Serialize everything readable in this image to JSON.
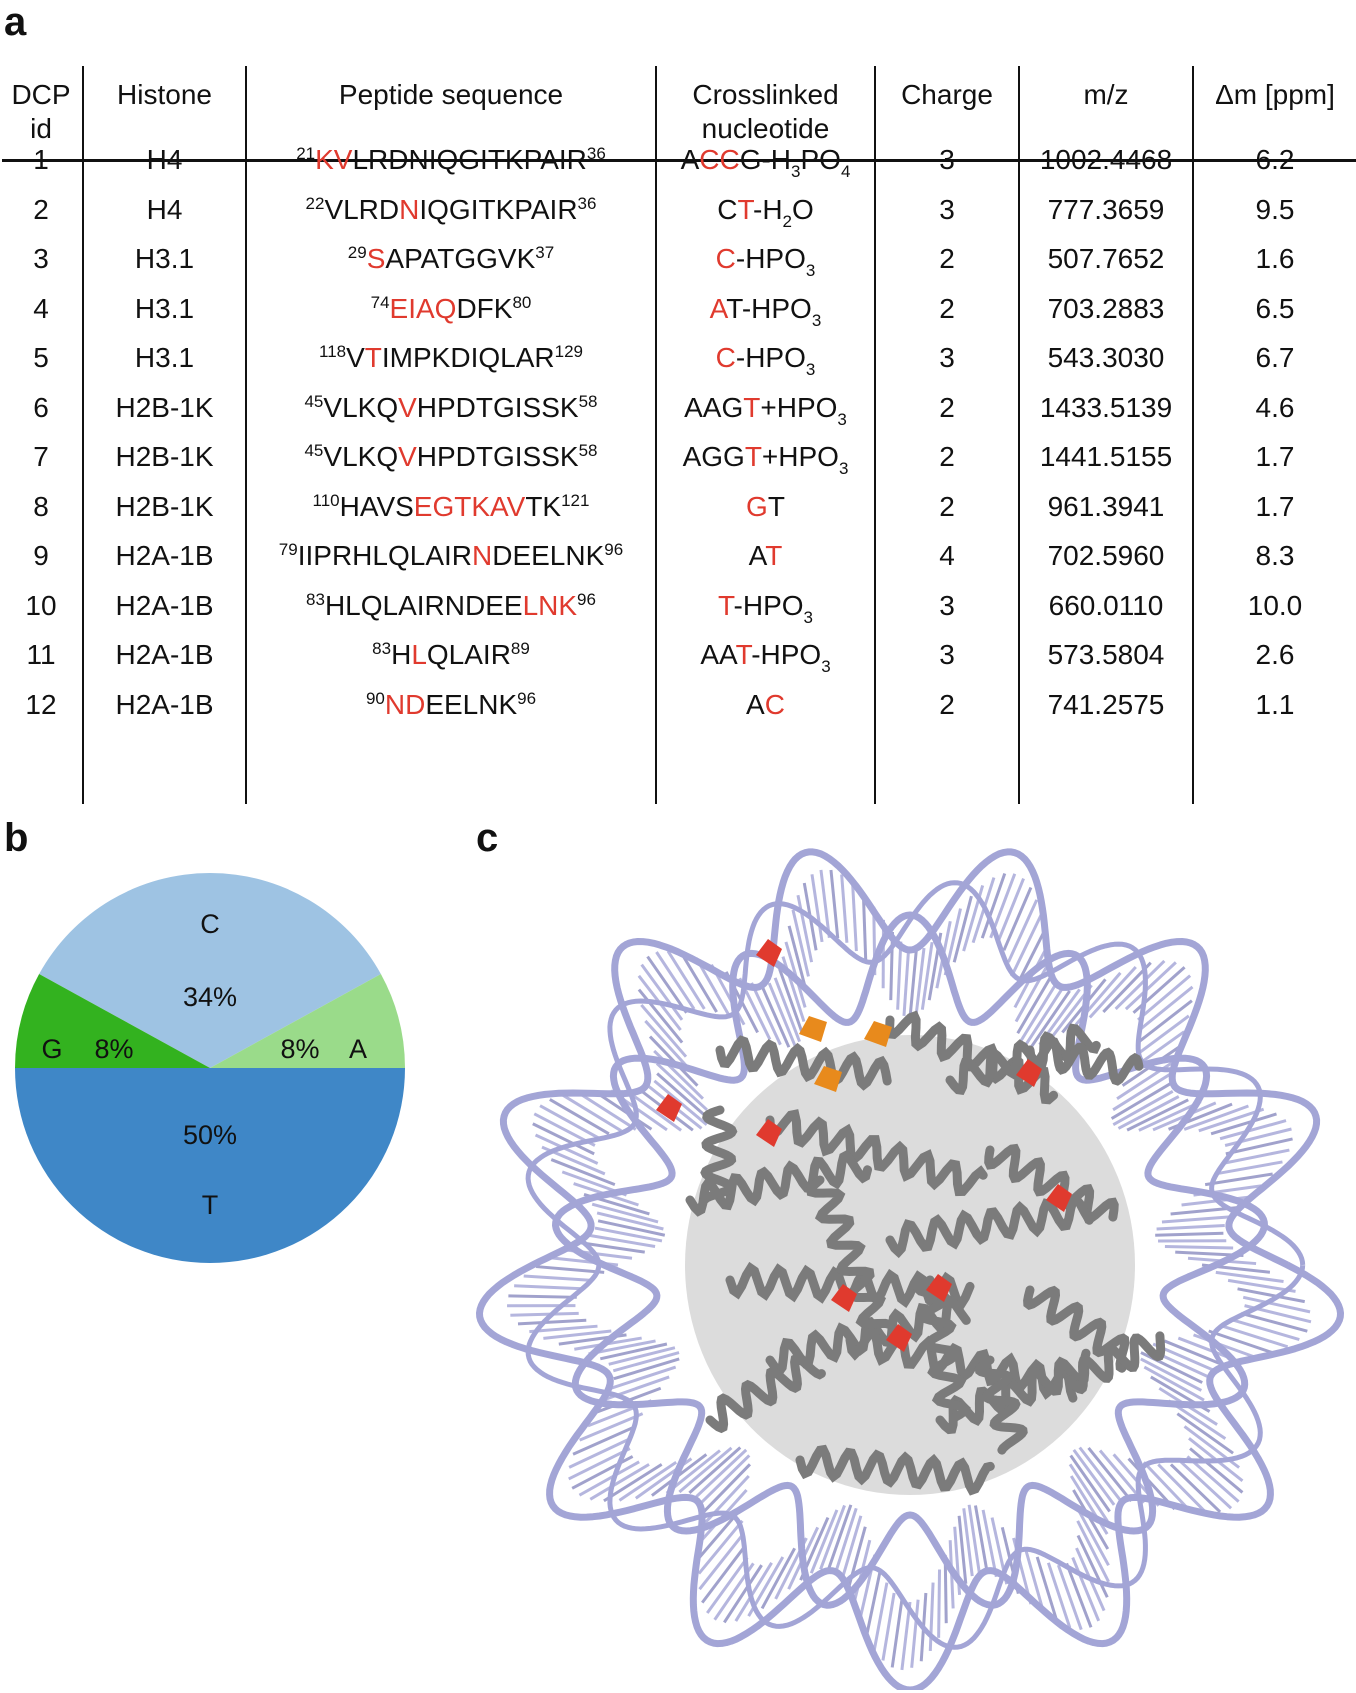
{
  "panels": {
    "a": "a",
    "b": "b",
    "c": "c"
  },
  "table": {
    "headers": {
      "id_line1": "DCP",
      "id_line2": "id",
      "histone": "Histone",
      "peptide": "Peptide sequence",
      "nuc_line1": "Crosslinked",
      "nuc_line2": "nucleotide",
      "charge": "Charge",
      "mz": "m/z",
      "ppm": "Δm [ppm]"
    },
    "rows": [
      {
        "id": "1",
        "histone": "H4",
        "peptide": [
          {
            "t": "21",
            "k": "sup"
          },
          {
            "t": "KV",
            "k": "red"
          },
          {
            "t": "LRDNIQGITKPAIR",
            "k": "n"
          },
          {
            "t": "36",
            "k": "sup"
          }
        ],
        "nucleotide": [
          {
            "t": "A",
            "k": "n"
          },
          {
            "t": "CC",
            "k": "red"
          },
          {
            "t": "G-H",
            "k": "n"
          },
          {
            "t": "3",
            "k": "sub"
          },
          {
            "t": "PO",
            "k": "n"
          },
          {
            "t": "4",
            "k": "sub"
          }
        ],
        "charge": "3",
        "mz": "1002.4468",
        "ppm": "6.2"
      },
      {
        "id": "2",
        "histone": "H4",
        "peptide": [
          {
            "t": "22",
            "k": "sup"
          },
          {
            "t": "VLRD",
            "k": "n"
          },
          {
            "t": "N",
            "k": "red"
          },
          {
            "t": "IQGITKPAIR",
            "k": "n"
          },
          {
            "t": "36",
            "k": "sup"
          }
        ],
        "nucleotide": [
          {
            "t": "C",
            "k": "n"
          },
          {
            "t": "T",
            "k": "red"
          },
          {
            "t": "-H",
            "k": "n"
          },
          {
            "t": "2",
            "k": "sub"
          },
          {
            "t": "O",
            "k": "n"
          }
        ],
        "charge": "3",
        "mz": "777.3659",
        "ppm": "9.5"
      },
      {
        "id": "3",
        "histone": "H3.1",
        "peptide": [
          {
            "t": "29",
            "k": "sup"
          },
          {
            "t": "S",
            "k": "red"
          },
          {
            "t": "APATGGVK",
            "k": "n"
          },
          {
            "t": "37",
            "k": "sup"
          }
        ],
        "nucleotide": [
          {
            "t": "C",
            "k": "red"
          },
          {
            "t": "-HPO",
            "k": "n"
          },
          {
            "t": "3",
            "k": "sub"
          }
        ],
        "charge": "2",
        "mz": "507.7652",
        "ppm": "1.6"
      },
      {
        "id": "4",
        "histone": "H3.1",
        "peptide": [
          {
            "t": "74",
            "k": "sup"
          },
          {
            "t": "EIAQ",
            "k": "red"
          },
          {
            "t": "DFK",
            "k": "n"
          },
          {
            "t": "80",
            "k": "sup"
          }
        ],
        "nucleotide": [
          {
            "t": "A",
            "k": "red"
          },
          {
            "t": "T-HPO",
            "k": "n"
          },
          {
            "t": "3",
            "k": "sub"
          }
        ],
        "charge": "2",
        "mz": "703.2883",
        "ppm": "6.5"
      },
      {
        "id": "5",
        "histone": "H3.1",
        "peptide": [
          {
            "t": "118",
            "k": "sup"
          },
          {
            "t": "V",
            "k": "n"
          },
          {
            "t": "T",
            "k": "red"
          },
          {
            "t": "IMPKDIQLAR",
            "k": "n"
          },
          {
            "t": "129",
            "k": "sup"
          }
        ],
        "nucleotide": [
          {
            "t": "C",
            "k": "red"
          },
          {
            "t": "-HPO",
            "k": "n"
          },
          {
            "t": "3",
            "k": "sub"
          }
        ],
        "charge": "3",
        "mz": "543.3030",
        "ppm": "6.7"
      },
      {
        "id": "6",
        "histone": "H2B-1K",
        "peptide": [
          {
            "t": "45",
            "k": "sup"
          },
          {
            "t": "VLKQ",
            "k": "n"
          },
          {
            "t": "V",
            "k": "red"
          },
          {
            "t": "HPDTGISSK",
            "k": "n"
          },
          {
            "t": "58",
            "k": "sup"
          }
        ],
        "nucleotide": [
          {
            "t": "AAG",
            "k": "n"
          },
          {
            "t": "T",
            "k": "red"
          },
          {
            "t": "+HPO",
            "k": "n"
          },
          {
            "t": "3",
            "k": "sub"
          }
        ],
        "charge": "2",
        "mz": "1433.5139",
        "ppm": "4.6"
      },
      {
        "id": "7",
        "histone": "H2B-1K",
        "peptide": [
          {
            "t": "45",
            "k": "sup"
          },
          {
            "t": "VLKQ",
            "k": "n"
          },
          {
            "t": "V",
            "k": "red"
          },
          {
            "t": "HPDTGISSK",
            "k": "n"
          },
          {
            "t": "58",
            "k": "sup"
          }
        ],
        "nucleotide": [
          {
            "t": "AGG",
            "k": "n"
          },
          {
            "t": "T",
            "k": "red"
          },
          {
            "t": "+HPO",
            "k": "n"
          },
          {
            "t": "3",
            "k": "sub"
          }
        ],
        "charge": "2",
        "mz": "1441.5155",
        "ppm": "1.7"
      },
      {
        "id": "8",
        "histone": "H2B-1K",
        "peptide": [
          {
            "t": "110",
            "k": "sup"
          },
          {
            "t": "HAVS",
            "k": "n"
          },
          {
            "t": "EGTKAV",
            "k": "red"
          },
          {
            "t": "TK",
            "k": "n"
          },
          {
            "t": "121",
            "k": "sup"
          }
        ],
        "nucleotide": [
          {
            "t": "G",
            "k": "red"
          },
          {
            "t": "T",
            "k": "n"
          }
        ],
        "charge": "2",
        "mz": "961.3941",
        "ppm": "1.7"
      },
      {
        "id": "9",
        "histone": "H2A-1B",
        "peptide": [
          {
            "t": "79",
            "k": "sup"
          },
          {
            "t": "IIPRHLQLAIR",
            "k": "n"
          },
          {
            "t": "N",
            "k": "red"
          },
          {
            "t": "DEELNK",
            "k": "n"
          },
          {
            "t": "96",
            "k": "sup"
          }
        ],
        "nucleotide": [
          {
            "t": "A",
            "k": "n"
          },
          {
            "t": "T",
            "k": "red"
          }
        ],
        "charge": "4",
        "mz": "702.5960",
        "ppm": "8.3"
      },
      {
        "id": "10",
        "histone": "H2A-1B",
        "peptide": [
          {
            "t": "83",
            "k": "sup"
          },
          {
            "t": "HLQLAIRNDEE",
            "k": "n"
          },
          {
            "t": "LNK",
            "k": "red"
          },
          {
            "t": "96",
            "k": "sup"
          }
        ],
        "nucleotide": [
          {
            "t": "T",
            "k": "red"
          },
          {
            "t": "-HPO",
            "k": "n"
          },
          {
            "t": "3",
            "k": "sub"
          }
        ],
        "charge": "3",
        "mz": "660.0110",
        "ppm": "10.0"
      },
      {
        "id": "11",
        "histone": "H2A-1B",
        "peptide": [
          {
            "t": "83",
            "k": "sup"
          },
          {
            "t": "H",
            "k": "n"
          },
          {
            "t": "L",
            "k": "red"
          },
          {
            "t": "QLAIR",
            "k": "n"
          },
          {
            "t": "89",
            "k": "sup"
          }
        ],
        "nucleotide": [
          {
            "t": "AA",
            "k": "n"
          },
          {
            "t": "T",
            "k": "red"
          },
          {
            "t": "-HPO",
            "k": "n"
          },
          {
            "t": "3",
            "k": "sub"
          }
        ],
        "charge": "3",
        "mz": "573.5804",
        "ppm": "2.6"
      },
      {
        "id": "12",
        "histone": "H2A-1B",
        "peptide": [
          {
            "t": "90",
            "k": "sup"
          },
          {
            "t": "ND",
            "k": "red"
          },
          {
            "t": "EELNK",
            "k": "n"
          },
          {
            "t": "96",
            "k": "sup"
          }
        ],
        "nucleotide": [
          {
            "t": "A",
            "k": "n"
          },
          {
            "t": "C",
            "k": "red"
          }
        ],
        "charge": "2",
        "mz": "741.2575",
        "ppm": "1.1"
      }
    ]
  },
  "chart_data": {
    "type": "pie",
    "slices": [
      {
        "name": "C",
        "label": "34%",
        "value": 34,
        "color": "#9ec3e3"
      },
      {
        "name": "A",
        "label": "8%",
        "value": 8,
        "color": "#9adb8a"
      },
      {
        "name": "T",
        "label": "50%",
        "value": 50,
        "color": "#3f87c7"
      },
      {
        "name": "G",
        "label": "8%",
        "value": 8,
        "color": "#33b21f"
      }
    ]
  },
  "colors": {
    "highlight": "#e03a2e",
    "dna": "#a3a5d6",
    "protein": "#7b7b7b",
    "orange": "#e88a1c"
  }
}
